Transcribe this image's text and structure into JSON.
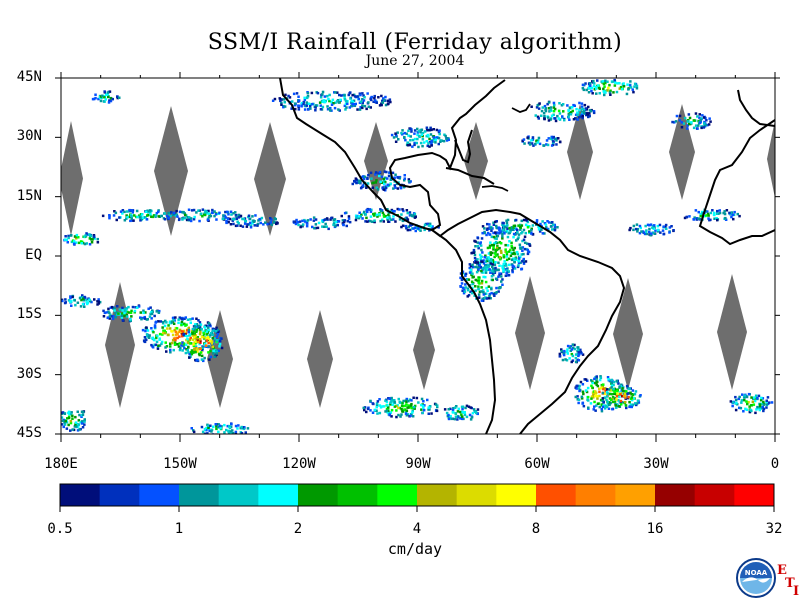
{
  "title": "SSM/I Rainfall (Ferriday algorithm)",
  "subtitle": "June 27, 2004",
  "lat_labels": [
    "45N",
    "30N",
    "15N",
    "EQ",
    "15S",
    "30S",
    "45S"
  ],
  "lon_labels": [
    "180E",
    "150W",
    "120W",
    "90W",
    "60W",
    "30W",
    "0"
  ],
  "colorbar": {
    "colors": [
      "#000e7a",
      "#0030bd",
      "#0451ff",
      "#00969b",
      "#00c8c8",
      "#00ffff",
      "#009900",
      "#00c000",
      "#00ff00",
      "#b4b400",
      "#dcdc00",
      "#ffff00",
      "#ff5000",
      "#ff7f00",
      "#ffa000",
      "#960000",
      "#c80000",
      "#ff0000"
    ],
    "labels": [
      "0.5",
      "1",
      "2",
      "4",
      "8",
      "16",
      "32"
    ],
    "units": "cm/day"
  },
  "logo": {
    "text": "NOAA",
    "letters": [
      "E",
      "T",
      "I"
    ]
  }
}
